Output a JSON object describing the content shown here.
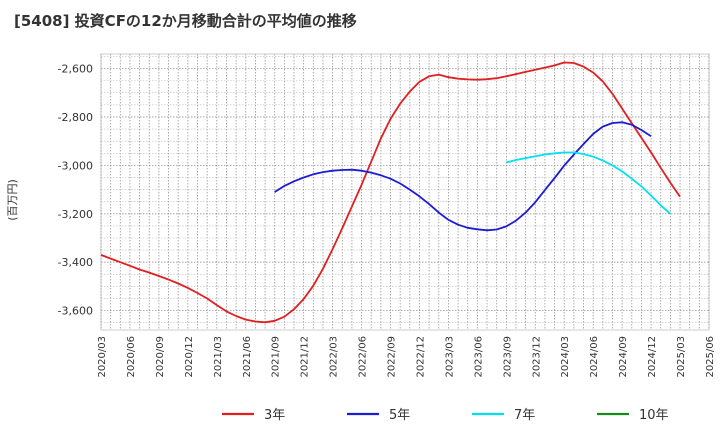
{
  "chart_data": {
    "type": "line",
    "title": "[5408]  投資CFの12か月移動合計の平均値の推移",
    "ylabel": "(百万円)",
    "xlabel": "",
    "ylim": [
      -3680,
      -2540
    ],
    "yticks": [
      -3600,
      -3400,
      -3200,
      -3000,
      -2800,
      -2600
    ],
    "ytick_labels": [
      "-3,600",
      "-3,400",
      "-3,200",
      "-3,000",
      "-2,800",
      "-2,600"
    ],
    "xticks": [
      "2020/03",
      "2020/06",
      "2020/09",
      "2020/12",
      "2021/03",
      "2021/06",
      "2021/09",
      "2021/12",
      "2022/03",
      "2022/06",
      "2022/09",
      "2022/12",
      "2023/03",
      "2023/06",
      "2023/09",
      "2023/12",
      "2024/03",
      "2024/06",
      "2024/09",
      "2024/12",
      "2025/03",
      "2025/06"
    ],
    "grid": true,
    "legend_position": "bottom",
    "series": [
      {
        "name": "3年",
        "color": "#e02020",
        "points": [
          [
            "2020/03",
            -3370
          ],
          [
            "2020/04",
            -3385
          ],
          [
            "2020/05",
            -3400
          ],
          [
            "2020/06",
            -3415
          ],
          [
            "2020/07",
            -3430
          ],
          [
            "2020/08",
            -3443
          ],
          [
            "2020/09",
            -3457
          ],
          [
            "2020/10",
            -3472
          ],
          [
            "2020/11",
            -3488
          ],
          [
            "2020/12",
            -3506
          ],
          [
            "2021/01",
            -3527
          ],
          [
            "2021/02",
            -3550
          ],
          [
            "2021/03",
            -3577
          ],
          [
            "2021/04",
            -3603
          ],
          [
            "2021/05",
            -3622
          ],
          [
            "2021/06",
            -3637
          ],
          [
            "2021/07",
            -3645
          ],
          [
            "2021/08",
            -3648
          ],
          [
            "2021/09",
            -3642
          ],
          [
            "2021/10",
            -3625
          ],
          [
            "2021/11",
            -3594
          ],
          [
            "2021/12",
            -3552
          ],
          [
            "2022/01",
            -3497
          ],
          [
            "2022/02",
            -3427
          ],
          [
            "2022/03",
            -3346
          ],
          [
            "2022/04",
            -3259
          ],
          [
            "2022/05",
            -3170
          ],
          [
            "2022/06",
            -3080
          ],
          [
            "2022/07",
            -2985
          ],
          [
            "2022/08",
            -2888
          ],
          [
            "2022/09",
            -2808
          ],
          [
            "2022/10",
            -2745
          ],
          [
            "2022/11",
            -2695
          ],
          [
            "2022/12",
            -2655
          ],
          [
            "2023/01",
            -2632
          ],
          [
            "2023/02",
            -2625
          ],
          [
            "2023/03",
            -2636
          ],
          [
            "2023/04",
            -2642
          ],
          [
            "2023/05",
            -2645
          ],
          [
            "2023/06",
            -2646
          ],
          [
            "2023/07",
            -2644
          ],
          [
            "2023/08",
            -2640
          ],
          [
            "2023/09",
            -2632
          ],
          [
            "2023/10",
            -2623
          ],
          [
            "2023/11",
            -2614
          ],
          [
            "2023/12",
            -2605
          ],
          [
            "2024/01",
            -2596
          ],
          [
            "2024/02",
            -2587
          ],
          [
            "2024/03",
            -2575
          ],
          [
            "2024/04",
            -2577
          ],
          [
            "2024/05",
            -2592
          ],
          [
            "2024/06",
            -2617
          ],
          [
            "2024/07",
            -2653
          ],
          [
            "2024/08",
            -2705
          ],
          [
            "2024/09",
            -2765
          ],
          [
            "2024/10",
            -2826
          ],
          [
            "2024/11",
            -2886
          ],
          [
            "2024/12",
            -2947
          ],
          [
            "2025/01",
            -3010
          ],
          [
            "2025/02",
            -3072
          ],
          [
            "2025/03",
            -3130
          ]
        ]
      },
      {
        "name": "5年",
        "color": "#1c1cd0",
        "points": [
          [
            "2021/09",
            -3110
          ],
          [
            "2021/10",
            -3085
          ],
          [
            "2021/11",
            -3066
          ],
          [
            "2021/12",
            -3050
          ],
          [
            "2022/01",
            -3037
          ],
          [
            "2022/02",
            -3028
          ],
          [
            "2022/03",
            -3022
          ],
          [
            "2022/04",
            -3019
          ],
          [
            "2022/05",
            -3018
          ],
          [
            "2022/06",
            -3022
          ],
          [
            "2022/07",
            -3030
          ],
          [
            "2022/08",
            -3041
          ],
          [
            "2022/09",
            -3055
          ],
          [
            "2022/10",
            -3075
          ],
          [
            "2022/11",
            -3100
          ],
          [
            "2022/12",
            -3128
          ],
          [
            "2023/01",
            -3160
          ],
          [
            "2023/02",
            -3195
          ],
          [
            "2023/03",
            -3225
          ],
          [
            "2023/04",
            -3245
          ],
          [
            "2023/05",
            -3258
          ],
          [
            "2023/06",
            -3264
          ],
          [
            "2023/07",
            -3268
          ],
          [
            "2023/08",
            -3265
          ],
          [
            "2023/09",
            -3252
          ],
          [
            "2023/10",
            -3228
          ],
          [
            "2023/11",
            -3195
          ],
          [
            "2023/12",
            -3152
          ],
          [
            "2024/01",
            -3102
          ],
          [
            "2024/02",
            -3052
          ],
          [
            "2024/03",
            -3001
          ],
          [
            "2024/04",
            -2955
          ],
          [
            "2024/05",
            -2912
          ],
          [
            "2024/06",
            -2870
          ],
          [
            "2024/07",
            -2840
          ],
          [
            "2024/08",
            -2825
          ],
          [
            "2024/09",
            -2822
          ],
          [
            "2024/10",
            -2832
          ],
          [
            "2024/11",
            -2854
          ],
          [
            "2024/12",
            -2880
          ]
        ]
      },
      {
        "name": "7年",
        "color": "#00e0f0",
        "points": [
          [
            "2023/09",
            -2988
          ],
          [
            "2023/10",
            -2978
          ],
          [
            "2023/11",
            -2970
          ],
          [
            "2023/12",
            -2962
          ],
          [
            "2024/01",
            -2955
          ],
          [
            "2024/02",
            -2950
          ],
          [
            "2024/03",
            -2947
          ],
          [
            "2024/04",
            -2947
          ],
          [
            "2024/05",
            -2953
          ],
          [
            "2024/06",
            -2964
          ],
          [
            "2024/07",
            -2980
          ],
          [
            "2024/08",
            -3000
          ],
          [
            "2024/09",
            -3025
          ],
          [
            "2024/10",
            -3055
          ],
          [
            "2024/11",
            -3087
          ],
          [
            "2024/12",
            -3125
          ],
          [
            "2025/01",
            -3165
          ],
          [
            "2025/02",
            -3200
          ]
        ]
      },
      {
        "name": "10年",
        "color": "#1a8a1a",
        "points": []
      }
    ]
  }
}
